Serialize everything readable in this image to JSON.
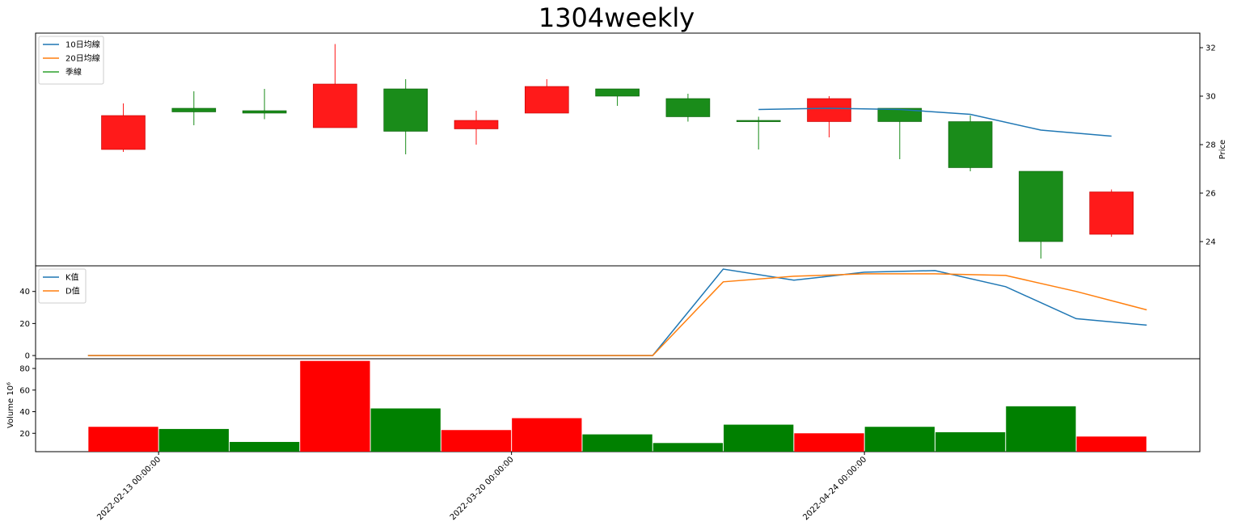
{
  "title": "1304weekly",
  "chart_data": [
    {
      "type": "candlestick",
      "panel": "price",
      "ylabel": "Price",
      "ylim": [
        23.0,
        32.6
      ],
      "yticks": [
        24,
        26,
        28,
        30,
        32
      ],
      "up_color": "#ff1a1a",
      "down_color": "#1a8c1a",
      "candles": [
        {
          "open": 27.8,
          "high": 29.7,
          "low": 27.7,
          "close": 29.2
        },
        {
          "open": 29.5,
          "high": 30.2,
          "low": 28.8,
          "close": 29.35
        },
        {
          "open": 29.4,
          "high": 30.3,
          "low": 29.05,
          "close": 29.3
        },
        {
          "open": 28.7,
          "high": 32.15,
          "low": 28.7,
          "close": 30.5
        },
        {
          "open": 30.3,
          "high": 30.7,
          "low": 27.6,
          "close": 28.55
        },
        {
          "open": 28.65,
          "high": 29.4,
          "low": 28.0,
          "close": 29.0
        },
        {
          "open": 29.3,
          "high": 30.7,
          "low": 29.3,
          "close": 30.4
        },
        {
          "open": 30.3,
          "high": 30.3,
          "low": 29.6,
          "close": 30.0
        },
        {
          "open": 29.9,
          "high": 30.1,
          "low": 28.95,
          "close": 29.15
        },
        {
          "open": 29.0,
          "high": 29.15,
          "low": 27.8,
          "close": 28.95
        },
        {
          "open": 28.95,
          "high": 30.0,
          "low": 28.3,
          "close": 29.9
        },
        {
          "open": 29.5,
          "high": 29.5,
          "low": 27.4,
          "close": 28.95
        },
        {
          "open": 28.95,
          "high": 29.2,
          "low": 26.9,
          "close": 27.05
        },
        {
          "open": 26.9,
          "high": 26.9,
          "low": 23.3,
          "close": 24.0
        },
        {
          "open": 24.3,
          "high": 26.15,
          "low": 24.2,
          "close": 26.05
        }
      ],
      "legend": {
        "placement": "upper-left",
        "entries": [
          {
            "name": "10日均線",
            "color": "#1f77b4"
          },
          {
            "name": "20日均線",
            "color": "#ff7f0e"
          },
          {
            "name": "季線",
            "color": "#2ca02c"
          }
        ]
      },
      "series": [
        {
          "name": "10日均線",
          "start_index": 9,
          "values": [
            29.45,
            29.5,
            29.45,
            29.25,
            28.6,
            28.35
          ]
        }
      ]
    },
    {
      "type": "line",
      "panel": "kd",
      "ylim": [
        -2,
        56
      ],
      "yticks": [
        0,
        20,
        40
      ],
      "legend": {
        "placement": "upper-left",
        "entries": [
          {
            "name": "K值",
            "color": "#1f77b4"
          },
          {
            "name": "D值",
            "color": "#ff7f0e"
          }
        ]
      },
      "x": [
        -0.5,
        7.5,
        8.5,
        9.5,
        10.5,
        11.5,
        12.5,
        13.5,
        14.5
      ],
      "series": [
        {
          "name": "K值",
          "values": [
            0,
            0,
            54,
            47,
            52,
            53,
            43,
            23,
            19
          ]
        },
        {
          "name": "D值",
          "values": [
            0,
            0,
            46,
            49.5,
            51,
            51,
            50,
            40,
            28.5
          ]
        }
      ]
    },
    {
      "type": "bar",
      "panel": "volume",
      "ylabel": "Volume  10⁶",
      "ylim": [
        3,
        89
      ],
      "yticks": [
        20,
        40,
        60,
        80
      ],
      "values": [
        26,
        24,
        12,
        87,
        43,
        23,
        34,
        19,
        11,
        28,
        20,
        26,
        21,
        45,
        17
      ],
      "colors": [
        "red",
        "green",
        "green",
        "red",
        "green",
        "red",
        "red",
        "green",
        "green",
        "green",
        "red",
        "green",
        "green",
        "green",
        "red"
      ],
      "xtick_labels": [
        {
          "index": 0.5,
          "label": "2022-02-13 00:00:00"
        },
        {
          "index": 5.5,
          "label": "2022-03-20 00:00:00"
        },
        {
          "index": 10.5,
          "label": "2022-04-24 00:00:00"
        }
      ]
    }
  ]
}
